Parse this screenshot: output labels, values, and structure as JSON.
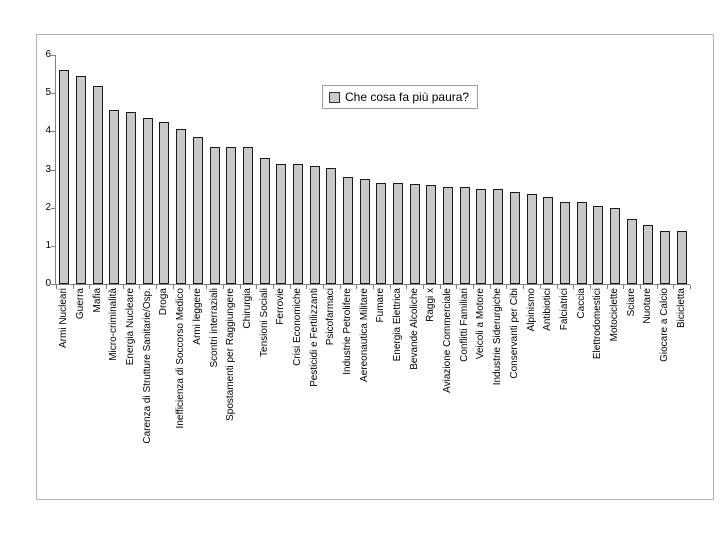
{
  "legend": {
    "label": "Che cosa fa più paura?"
  },
  "colors": {
    "background": "#ffffff",
    "bar_fill": "#c9c9c9",
    "bar_border": "#1a1a1a",
    "axis": "#808080",
    "frame_border": "#b3b3b3",
    "legend_border": "#9a9a9a",
    "text": "#000000"
  },
  "chart_data": {
    "type": "bar",
    "title": "",
    "legend_entries": [
      "Che cosa fa più paura?"
    ],
    "legend_position": "top-center-inside",
    "grid": false,
    "xlabel": "",
    "ylabel": "",
    "ylim": [
      0,
      6
    ],
    "yticks": [
      0,
      1,
      2,
      3,
      4,
      5,
      6
    ],
    "categories": [
      "Armi Nucleari",
      "Guerra",
      "Mafia",
      "Micro-criminalità",
      "Energia Nucleare",
      "Carenza di Strutture Sanitarie/Osp.",
      "Droga",
      "Inefficienza di Soccorso Medico",
      "Armi leggere",
      "Scontri interraziali",
      "Spostamenti per Raggiungere",
      "Chirurgia",
      "Tensioni Sociali",
      "Ferrovie",
      "Crisi Economiche",
      "Pesticidi e Fertilizzanti",
      "Psicofarmaci",
      "Industrie Petrolifere",
      "Aereonautica Militare",
      "Fumare",
      "Energia Elettrica",
      "Bevande Alcoliche",
      "Raggi x",
      "Aviazione Commerciale",
      "Conflitti Familiari",
      "Veicoli a Motore",
      "Industrie Siderurgiche",
      "Conservanti per Cibi",
      "Alpinismo",
      "Antibiotici",
      "Falciatrici",
      "Caccia",
      "Elettrodomestici",
      "Motociclette",
      "Sciare",
      "Nuotare",
      "Giocare a Calcio",
      "Bicicletta"
    ],
    "values": [
      5.6,
      5.45,
      5.2,
      4.55,
      4.5,
      4.35,
      4.25,
      4.05,
      3.85,
      3.6,
      3.6,
      3.58,
      3.3,
      3.15,
      3.15,
      3.1,
      3.05,
      2.8,
      2.75,
      2.65,
      2.65,
      2.62,
      2.6,
      2.55,
      2.53,
      2.5,
      2.48,
      2.4,
      2.35,
      2.28,
      2.15,
      2.15,
      2.05,
      2.0,
      1.7,
      1.55,
      1.4,
      1.4
    ]
  }
}
